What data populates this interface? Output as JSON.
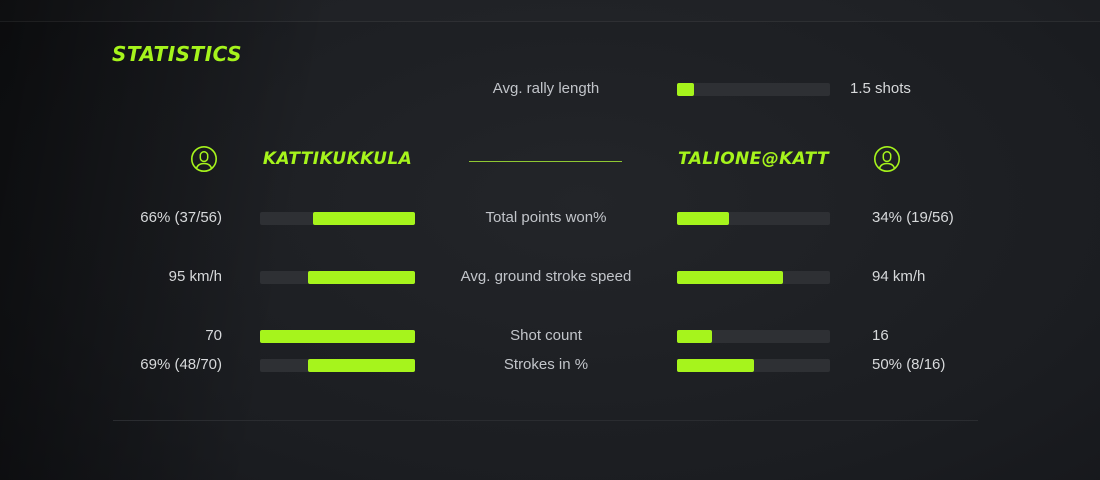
{
  "title": "STATISTICS",
  "colors": {
    "accent": "#a6f41c",
    "divider_green": "#8fc832",
    "bar_track": "#2e3034",
    "value_text": "#d7d9db",
    "label_text": "#c2c5ca"
  },
  "players": {
    "left": {
      "name": "KATTIKUKKULA",
      "icon": "person-icon"
    },
    "right": {
      "name": "TALIONE@KATT",
      "icon": "person-icon"
    }
  },
  "rally": {
    "label": "Avg. rally length",
    "value": "1.5 shots",
    "fill_pct": 11
  },
  "stats": [
    {
      "label": "Total points won%",
      "left_value": "66% (37/56)",
      "left_fill_pct": 66,
      "right_value": "34% (19/56)",
      "right_fill_pct": 34
    },
    {
      "label": "Avg. ground stroke speed",
      "left_value": "95 km/h",
      "left_fill_pct": 69,
      "right_value": "94 km/h",
      "right_fill_pct": 69
    },
    {
      "label": "Shot count",
      "left_value": "70",
      "left_fill_pct": 100,
      "right_value": "16",
      "right_fill_pct": 23
    },
    {
      "label": "Strokes in %",
      "left_value": "69% (48/70)",
      "left_fill_pct": 69,
      "right_value": "50% (8/16)",
      "right_fill_pct": 50
    }
  ]
}
